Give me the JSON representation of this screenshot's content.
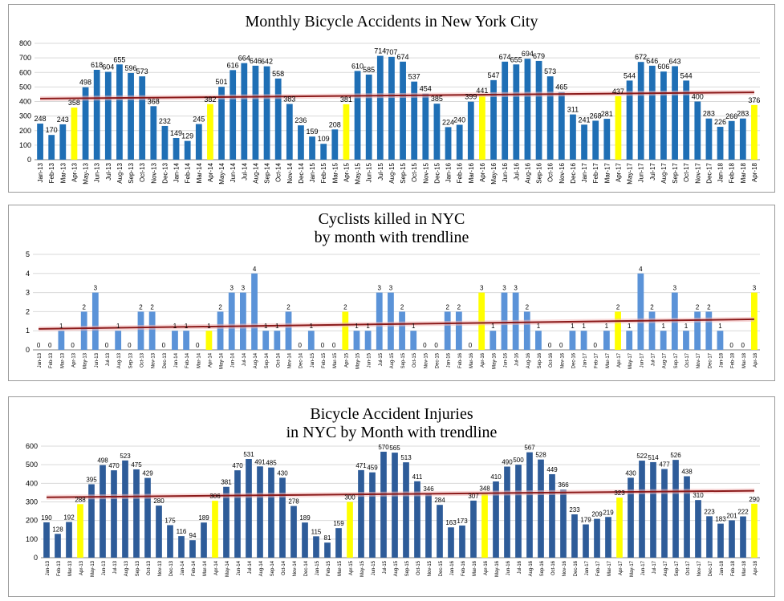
{
  "chart_data": [
    {
      "type": "bar",
      "title": "Monthly Bicycle Accidents in New York City",
      "title_lines": [
        "Monthly Bicycle Accidents in New York City"
      ],
      "categories": [
        "Jan-13",
        "Feb-13",
        "Mar-13",
        "Apr-13",
        "May-13",
        "Jun-13",
        "Jul-13",
        "Aug-13",
        "Sep-13",
        "Oct-13",
        "Nov-13",
        "Dec-13",
        "Jan-14",
        "Feb-14",
        "Mar-14",
        "Apr-14",
        "May-14",
        "Jun-14",
        "Jul-14",
        "Aug-14",
        "Sep-14",
        "Oct-14",
        "Nov-14",
        "Dec-14",
        "Jan-15",
        "Feb-15",
        "Mar-15",
        "Apr-15",
        "May-15",
        "Jun-15",
        "Jul-15",
        "Aug-15",
        "Sep-15",
        "Oct-15",
        "Nov-15",
        "Dec-15",
        "Jan-16",
        "Feb-16",
        "Mar-16",
        "Apr-16",
        "May-16",
        "Jun-16",
        "Jul-16",
        "Aug-16",
        "Sep-16",
        "Oct-16",
        "Nov-16",
        "Dec-16",
        "Jan-17",
        "Feb-17",
        "Mar-17",
        "Apr-17",
        "May-17",
        "Jun-17",
        "Jul-17",
        "Aug-17",
        "Sep-17",
        "Oct-17",
        "Nov-17",
        "Dec-17",
        "Jan-18",
        "Feb-18",
        "Mar-18",
        "Apr-18"
      ],
      "values": [
        248,
        170,
        243,
        358,
        498,
        618,
        604,
        655,
        596,
        573,
        368,
        232,
        149,
        129,
        245,
        382,
        501,
        616,
        664,
        646,
        642,
        558,
        383,
        236,
        159,
        109,
        208,
        381,
        610,
        585,
        714,
        707,
        674,
        537,
        454,
        385,
        224,
        240,
        399,
        441,
        547,
        674,
        655,
        694,
        679,
        573,
        465,
        311,
        241,
        268,
        281,
        437,
        544,
        672,
        646,
        606,
        643,
        544,
        400,
        283,
        226,
        266,
        283,
        376
      ],
      "highlight_months": [
        "Apr-13",
        "Apr-14",
        "Apr-15",
        "Apr-16",
        "Apr-17",
        "Apr-18"
      ],
      "ylim": [
        0,
        800
      ],
      "yticks": [
        0,
        100,
        200,
        300,
        400,
        500,
        600,
        700,
        800
      ],
      "trendline": [
        420,
        463
      ],
      "colors": {
        "bar": "#1f6fb5",
        "highlight": "#ffff00",
        "trend": "#8b1a1a",
        "trend_band": "#f2b8b8"
      }
    },
    {
      "type": "bar",
      "title": "Cyclists killed in NYC by month with trendline",
      "title_lines": [
        "Cyclists killed in NYC",
        "by month with trendline"
      ],
      "categories": [
        "Jan-13",
        "Feb-13",
        "Mar-13",
        "Apr-13",
        "May-13",
        "Jun-13",
        "Jul-13",
        "Aug-13",
        "Sep-13",
        "Oct-13",
        "Nov-13",
        "Dec-13",
        "Jan-14",
        "Feb-14",
        "Mar-14",
        "Apr-14",
        "May-14",
        "Jun-14",
        "Jul-14",
        "Aug-14",
        "Sep-14",
        "Oct-14",
        "Nov-14",
        "Dec-14",
        "Jan-15",
        "Feb-15",
        "Mar-15",
        "Apr-15",
        "May-15",
        "Jun-15",
        "Jul-15",
        "Aug-15",
        "Sep-15",
        "Oct-15",
        "Nov-15",
        "Dec-15",
        "Jan-16",
        "Feb-16",
        "Mar-16",
        "Apr-16",
        "May-16",
        "Jun-16",
        "Jul-16",
        "Aug-16",
        "Sep-16",
        "Oct-16",
        "Nov-16",
        "Dec-16",
        "Jan-17",
        "Feb-17",
        "Mar-17",
        "Apr-17",
        "May-17",
        "Jun-17",
        "Jul-17",
        "Aug-17",
        "Sep-17",
        "Oct-17",
        "Nov-17",
        "Dec-17",
        "Jan-18",
        "Feb-18",
        "Mar-18",
        "Apr-18"
      ],
      "values": [
        0,
        0,
        1,
        0,
        2,
        3,
        0,
        1,
        0,
        2,
        2,
        0,
        1,
        1,
        0,
        1,
        2,
        3,
        3,
        4,
        1,
        1,
        2,
        0,
        1,
        0,
        0,
        2,
        1,
        1,
        3,
        3,
        2,
        1,
        0,
        0,
        2,
        2,
        0,
        3,
        1,
        3,
        3,
        2,
        1,
        0,
        0,
        1,
        1,
        0,
        1,
        2,
        1,
        4,
        2,
        1,
        3,
        1,
        2,
        2,
        1,
        0,
        0,
        3
      ],
      "highlight_months": [
        "Apr-13",
        "Apr-14",
        "Apr-15",
        "Apr-16",
        "Apr-17",
        "Apr-18"
      ],
      "ylim": [
        0,
        5
      ],
      "yticks": [
        0,
        1,
        2,
        3,
        4,
        5
      ],
      "trendline": [
        1.1,
        1.6
      ],
      "colors": {
        "bar": "#5b93d8",
        "highlight": "#ffff00",
        "trend": "#8b1a1a",
        "trend_band": "#f2b8b8"
      }
    },
    {
      "type": "bar",
      "title": "Bicycle Accident Injuries in NYC by Month with trendline",
      "title_lines": [
        "Bicycle Accident Injuries",
        "in NYC by Month with trendline"
      ],
      "categories": [
        "Jan-13",
        "Feb-13",
        "Mar-13",
        "Apr-13",
        "May-13",
        "Jun-13",
        "Jul-13",
        "Aug-13",
        "Sep-13",
        "Oct-13",
        "Nov-13",
        "Dec-13",
        "Jan-14",
        "Feb-14",
        "Mar-14",
        "Apr-14",
        "May-14",
        "Jun-14",
        "Jul-14",
        "Aug-14",
        "Sep-14",
        "Oct-14",
        "Nov-14",
        "Dec-14",
        "Jan-15",
        "Feb-15",
        "Mar-15",
        "Apr-15",
        "May-15",
        "Jun-15",
        "Jul-15",
        "Aug-15",
        "Sep-15",
        "Oct-15",
        "Nov-15",
        "Dec-15",
        "Jan-16",
        "Feb-16",
        "Mar-16",
        "Apr-16",
        "May-16",
        "Jun-16",
        "Jul-16",
        "Aug-16",
        "Sep-16",
        "Oct-16",
        "Nov-16",
        "Dec-16",
        "Jan-17",
        "Feb-17",
        "Mar-17",
        "Apr-17",
        "May-17",
        "Jun-17",
        "Jul-17",
        "Aug-17",
        "Sep-17",
        "Oct-17",
        "Nov-17",
        "Dec-17",
        "Jan-18",
        "Feb-18",
        "Mar-18",
        "Apr-18"
      ],
      "values": [
        190,
        128,
        192,
        288,
        395,
        498,
        470,
        523,
        475,
        429,
        280,
        175,
        116,
        94,
        189,
        306,
        381,
        470,
        531,
        491,
        485,
        430,
        278,
        189,
        115,
        81,
        159,
        300,
        471,
        459,
        570,
        565,
        513,
        411,
        346,
        284,
        163,
        173,
        307,
        348,
        410,
        490,
        500,
        567,
        528,
        449,
        366,
        233,
        179,
        209,
        219,
        323,
        430,
        522,
        514,
        477,
        526,
        438,
        310,
        223,
        183,
        201,
        222,
        290
      ],
      "highlight_months": [
        "Apr-13",
        "Apr-14",
        "Apr-15",
        "Apr-16",
        "Apr-17",
        "Apr-18"
      ],
      "ylim": [
        0,
        600
      ],
      "yticks": [
        0,
        100,
        200,
        300,
        400,
        500,
        600
      ],
      "trendline": [
        325,
        360
      ],
      "colors": {
        "bar": "#2e5c99",
        "highlight": "#ffff00",
        "trend": "#8b1a1a",
        "trend_band": "#f2b8b8"
      }
    }
  ]
}
